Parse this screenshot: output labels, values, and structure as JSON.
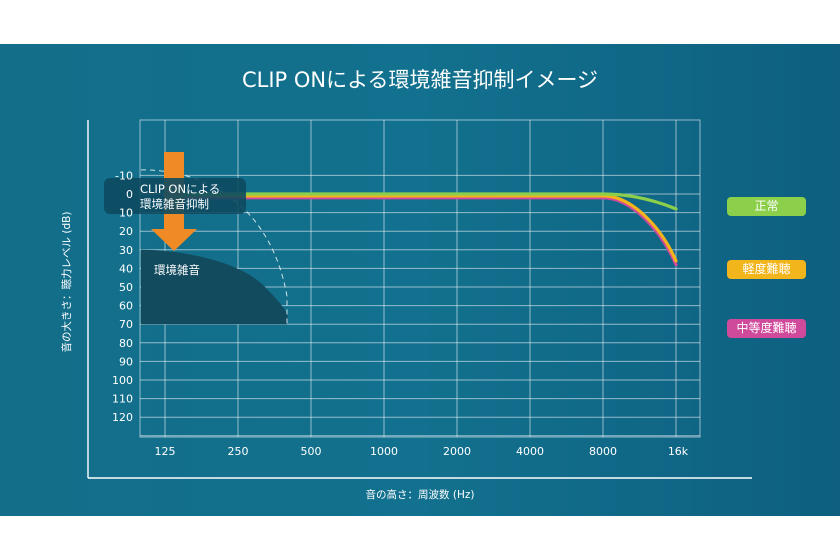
{
  "chart_data": {
    "type": "line",
    "title": "CLIP ONによる環境雑音抑制イメージ",
    "xlabel": "音の高さ：周波数 (Hz)",
    "ylabel": "音の大きさ：聴力レベル (dB)",
    "x_ticks": [
      "125",
      "250",
      "500",
      "1000",
      "2000",
      "4000",
      "8000",
      "16k"
    ],
    "y_ticks": [
      -10,
      0,
      10,
      20,
      30,
      40,
      50,
      60,
      70,
      80,
      90,
      100,
      110,
      120
    ],
    "ylim": [
      -10,
      120
    ],
    "y_inverted": true,
    "grid": true,
    "series": [
      {
        "name": "正常",
        "color": "#8ccf4a",
        "points": [
          [
            0,
            0
          ],
          [
            6,
            0
          ],
          [
            6.5,
            2
          ],
          [
            7,
            8
          ]
        ]
      },
      {
        "name": "軽度難聴",
        "color": "#f2b51c",
        "points": [
          [
            0,
            1
          ],
          [
            6,
            1
          ],
          [
            6.4,
            4
          ],
          [
            6.8,
            18
          ],
          [
            7,
            36
          ]
        ]
      },
      {
        "name": "中等度難聴",
        "color": "#d04a9c",
        "points": [
          [
            0,
            2
          ],
          [
            6,
            2
          ],
          [
            6.4,
            5
          ],
          [
            6.8,
            20
          ],
          [
            7,
            38
          ]
        ]
      }
    ],
    "annotations": {
      "clip_on_label_line1": "CLIP ONによる",
      "clip_on_label_line2": "環境雑音抑制",
      "noise_label": "環境雑音",
      "noise_region": [
        [
          0,
          30
        ],
        [
          0.3,
          33
        ],
        [
          1,
          38
        ],
        [
          1.5,
          45
        ],
        [
          1.8,
          55
        ],
        [
          2,
          70
        ],
        [
          0,
          70
        ]
      ],
      "original_noise_outline": [
        [
          0,
          -13
        ],
        [
          0.7,
          -12
        ],
        [
          1.3,
          0
        ],
        [
          1.8,
          25
        ],
        [
          2,
          55
        ],
        [
          2,
          70
        ]
      ]
    },
    "legend": [
      "正常",
      "軽度難聴",
      "中等度難聴"
    ],
    "legend_placement": "right"
  },
  "colors": {
    "normal": "#8ccf4a",
    "mild": "#f2b51c",
    "moderate": "#d04a9c",
    "arrow": "#f08a24",
    "noise_fill": "#124a5e"
  }
}
